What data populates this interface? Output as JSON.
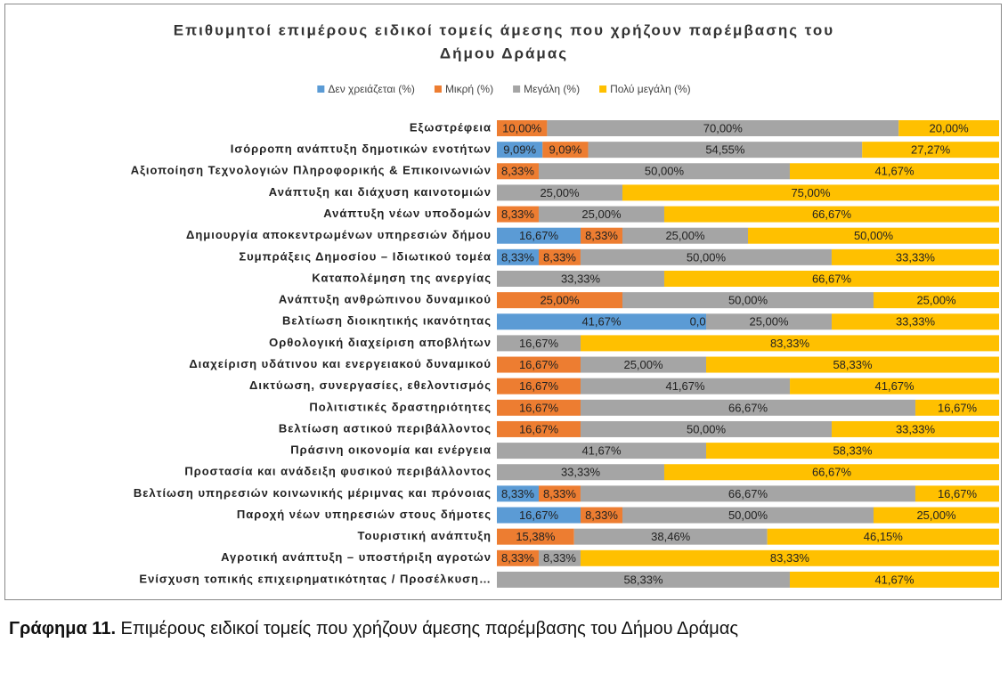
{
  "chart_data": {
    "type": "stacked-bar-horizontal",
    "title": [
      "Επιθυμητοί επιμέρους ειδικοί τομείς άμεσης που χρήζουν παρέμβασης του",
      "Δήμου Δράμας"
    ],
    "categories": [
      "Εξωστρέφεια",
      "Ισόρροπη ανάπτυξη δημοτικών ενοτήτων",
      "Αξιοποίηση Τεχνολογιών Πληροφορικής & Επικοινωνιών",
      "Ανάπτυξη και διάχυση καινοτομιών",
      "Ανάπτυξη νέων υποδομών",
      "Δημιουργία αποκεντρωμένων υπηρεσιών δήμου",
      "Συμπράξεις Δημοσίου – Ιδιωτικού τομέα",
      "Καταπολέμηση της ανεργίας",
      "Ανάπτυξη ανθρώπινου δυναμικού",
      "Βελτίωση διοικητικής ικανότητας",
      "Ορθολογική διαχείριση αποβλήτων",
      "Διαχείριση υδάτινου και ενεργειακού δυναμικού",
      "Δικτύωση, συνεργασίες, εθελοντισμός",
      "Πολιτιστικές δραστηριότητες ",
      "Βελτίωση αστικού περιβάλλοντος",
      "Πράσινη οικονομία και ενέργεια",
      "Προστασία και ανάδειξη φυσικού περιβάλλοντος",
      "Βελτίωση υπηρεσιών κοινωνικής μέριμνας και πρόνοιας",
      "Παροχή νέων υπηρεσιών στους δήμοτες",
      "Τουριστική ανάπτυξη",
      "Αγροτική ανάπτυξη – υποστήριξη αγροτών",
      "Ενίσχυση τοπικής επιχειρηματικότητας / Προσέλκυση…"
    ],
    "xlim": [
      0,
      100
    ],
    "series": [
      {
        "name": "Δεν χρειάζεται (%)",
        "color": "#5b9bd5",
        "values": [
          null,
          9.09,
          null,
          null,
          null,
          16.67,
          8.33,
          null,
          null,
          41.67,
          null,
          null,
          null,
          null,
          null,
          null,
          null,
          8.33,
          16.67,
          null,
          null,
          null
        ],
        "value_labels": [
          null,
          "9,09%",
          null,
          null,
          null,
          "16,67%",
          "8,33%",
          null,
          null,
          "41,67%",
          null,
          null,
          null,
          null,
          null,
          null,
          null,
          "8,33%",
          "16,67%",
          null,
          null,
          null
        ]
      },
      {
        "name": "Μικρή (%)",
        "color": "#ed7d31",
        "values": [
          10,
          9.09,
          8.33,
          null,
          8.33,
          8.33,
          8.33,
          null,
          25,
          0,
          null,
          16.67,
          16.67,
          16.67,
          16.67,
          null,
          null,
          8.33,
          8.33,
          15.38,
          8.33,
          null
        ],
        "value_labels": [
          "10,00%",
          "9,09%",
          "8,33%",
          null,
          "8,33%",
          "8,33%",
          "8,33%",
          null,
          "25,00%",
          "0,00%",
          null,
          "16,67%",
          "16,67%",
          "16,67%",
          "16,67%",
          null,
          null,
          "8,33%",
          "8,33%",
          "15,38%",
          "8,33%",
          null
        ]
      },
      {
        "name": "Μεγάλη (%)",
        "color": "#a5a5a5",
        "values": [
          70,
          54.55,
          50,
          25,
          25,
          25,
          50,
          33.33,
          50,
          25,
          16.67,
          25,
          41.67,
          66.67,
          50,
          41.67,
          33.33,
          66.67,
          50,
          38.46,
          8.33,
          58.33
        ],
        "value_labels": [
          "70,00%",
          "54,55%",
          "50,00%",
          "25,00%",
          "25,00%",
          "25,00%",
          "50,00%",
          "33,33%",
          "50,00%",
          "25,00%",
          "16,67%",
          "25,00%",
          "41,67%",
          "66,67%",
          "50,00%",
          "41,67%",
          "33,33%",
          "66,67%",
          "50,00%",
          "38,46%",
          "8,33%",
          "58,33%"
        ]
      },
      {
        "name": "Πολύ μεγάλη (%)",
        "color": "#ffc000",
        "values": [
          20,
          27.27,
          41.67,
          75,
          66.67,
          50,
          33.33,
          66.67,
          25,
          33.33,
          83.33,
          58.33,
          41.67,
          16.67,
          33.33,
          58.33,
          66.67,
          16.67,
          25,
          46.15,
          83.33,
          41.67
        ],
        "value_labels": [
          "20,00%",
          "27,27%",
          "41,67%",
          "75,00%",
          "66,67%",
          "50,00%",
          "33,33%",
          "66,67%",
          "25,00%",
          "33,33%",
          "83,33%",
          "58,33%",
          "41,67%",
          "16,67%",
          "33,33%",
          "58,33%",
          "66,67%",
          "16,67%",
          "25,00%",
          "46,15%",
          "83,33%",
          "41,67%"
        ]
      }
    ]
  },
  "caption": {
    "label": "Γράφημα 11.",
    "text": " Επιμέρους ειδικοί τομείς που χρήζουν άμεσης παρέμβασης του Δήμου Δράμας"
  }
}
